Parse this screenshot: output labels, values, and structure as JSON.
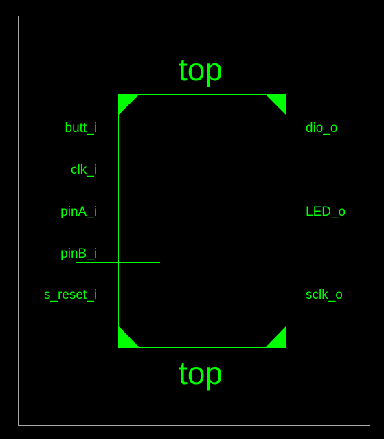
{
  "colors": {
    "background": "#000000",
    "frame": "#a8a8a8",
    "symbol": "#00ff00"
  },
  "symbol": {
    "name_top": "top",
    "name_bottom": "top"
  },
  "ports": {
    "inputs": [
      {
        "label": "butt_i"
      },
      {
        "label": "clk_i"
      },
      {
        "label": "pinA_i"
      },
      {
        "label": "pinB_i"
      },
      {
        "label": "s_reset_i"
      }
    ],
    "outputs": [
      {
        "label": "dio_o"
      },
      {
        "label": "LED_o"
      },
      {
        "label": "sclk_o"
      }
    ]
  }
}
